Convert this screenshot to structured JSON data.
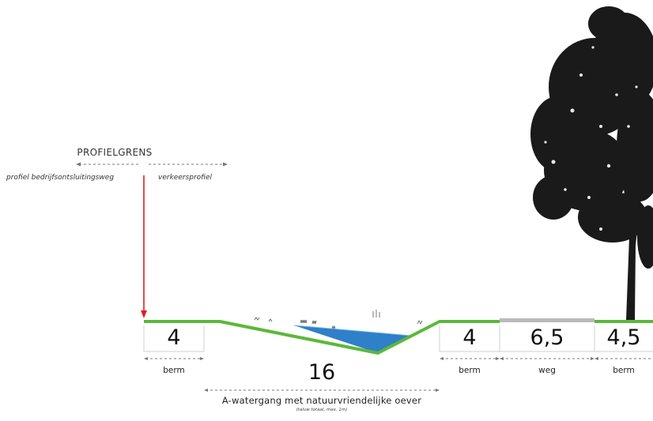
{
  "profielgrens": {
    "title": "PROFIELGRENS",
    "left_label": "profiel bedrijfsontsluitingsweg",
    "right_label": "verkeersprofiel"
  },
  "segments": [
    {
      "width": "4",
      "label": "berm"
    },
    {
      "width": "16",
      "label": "A-watergang met natuurvriendelijke oever",
      "note": "(taluw totaal, max. 1m)"
    },
    {
      "width": "4",
      "label": "berm"
    },
    {
      "width": "6,5",
      "label": "weg"
    },
    {
      "width": "4,5",
      "label": "berm"
    }
  ],
  "colors": {
    "grass": "#5cb83a",
    "water": "#2f7fc9",
    "road": "#b9b9b9",
    "boundary_arrow": "#e02020",
    "tree": "#1a1a1a"
  }
}
